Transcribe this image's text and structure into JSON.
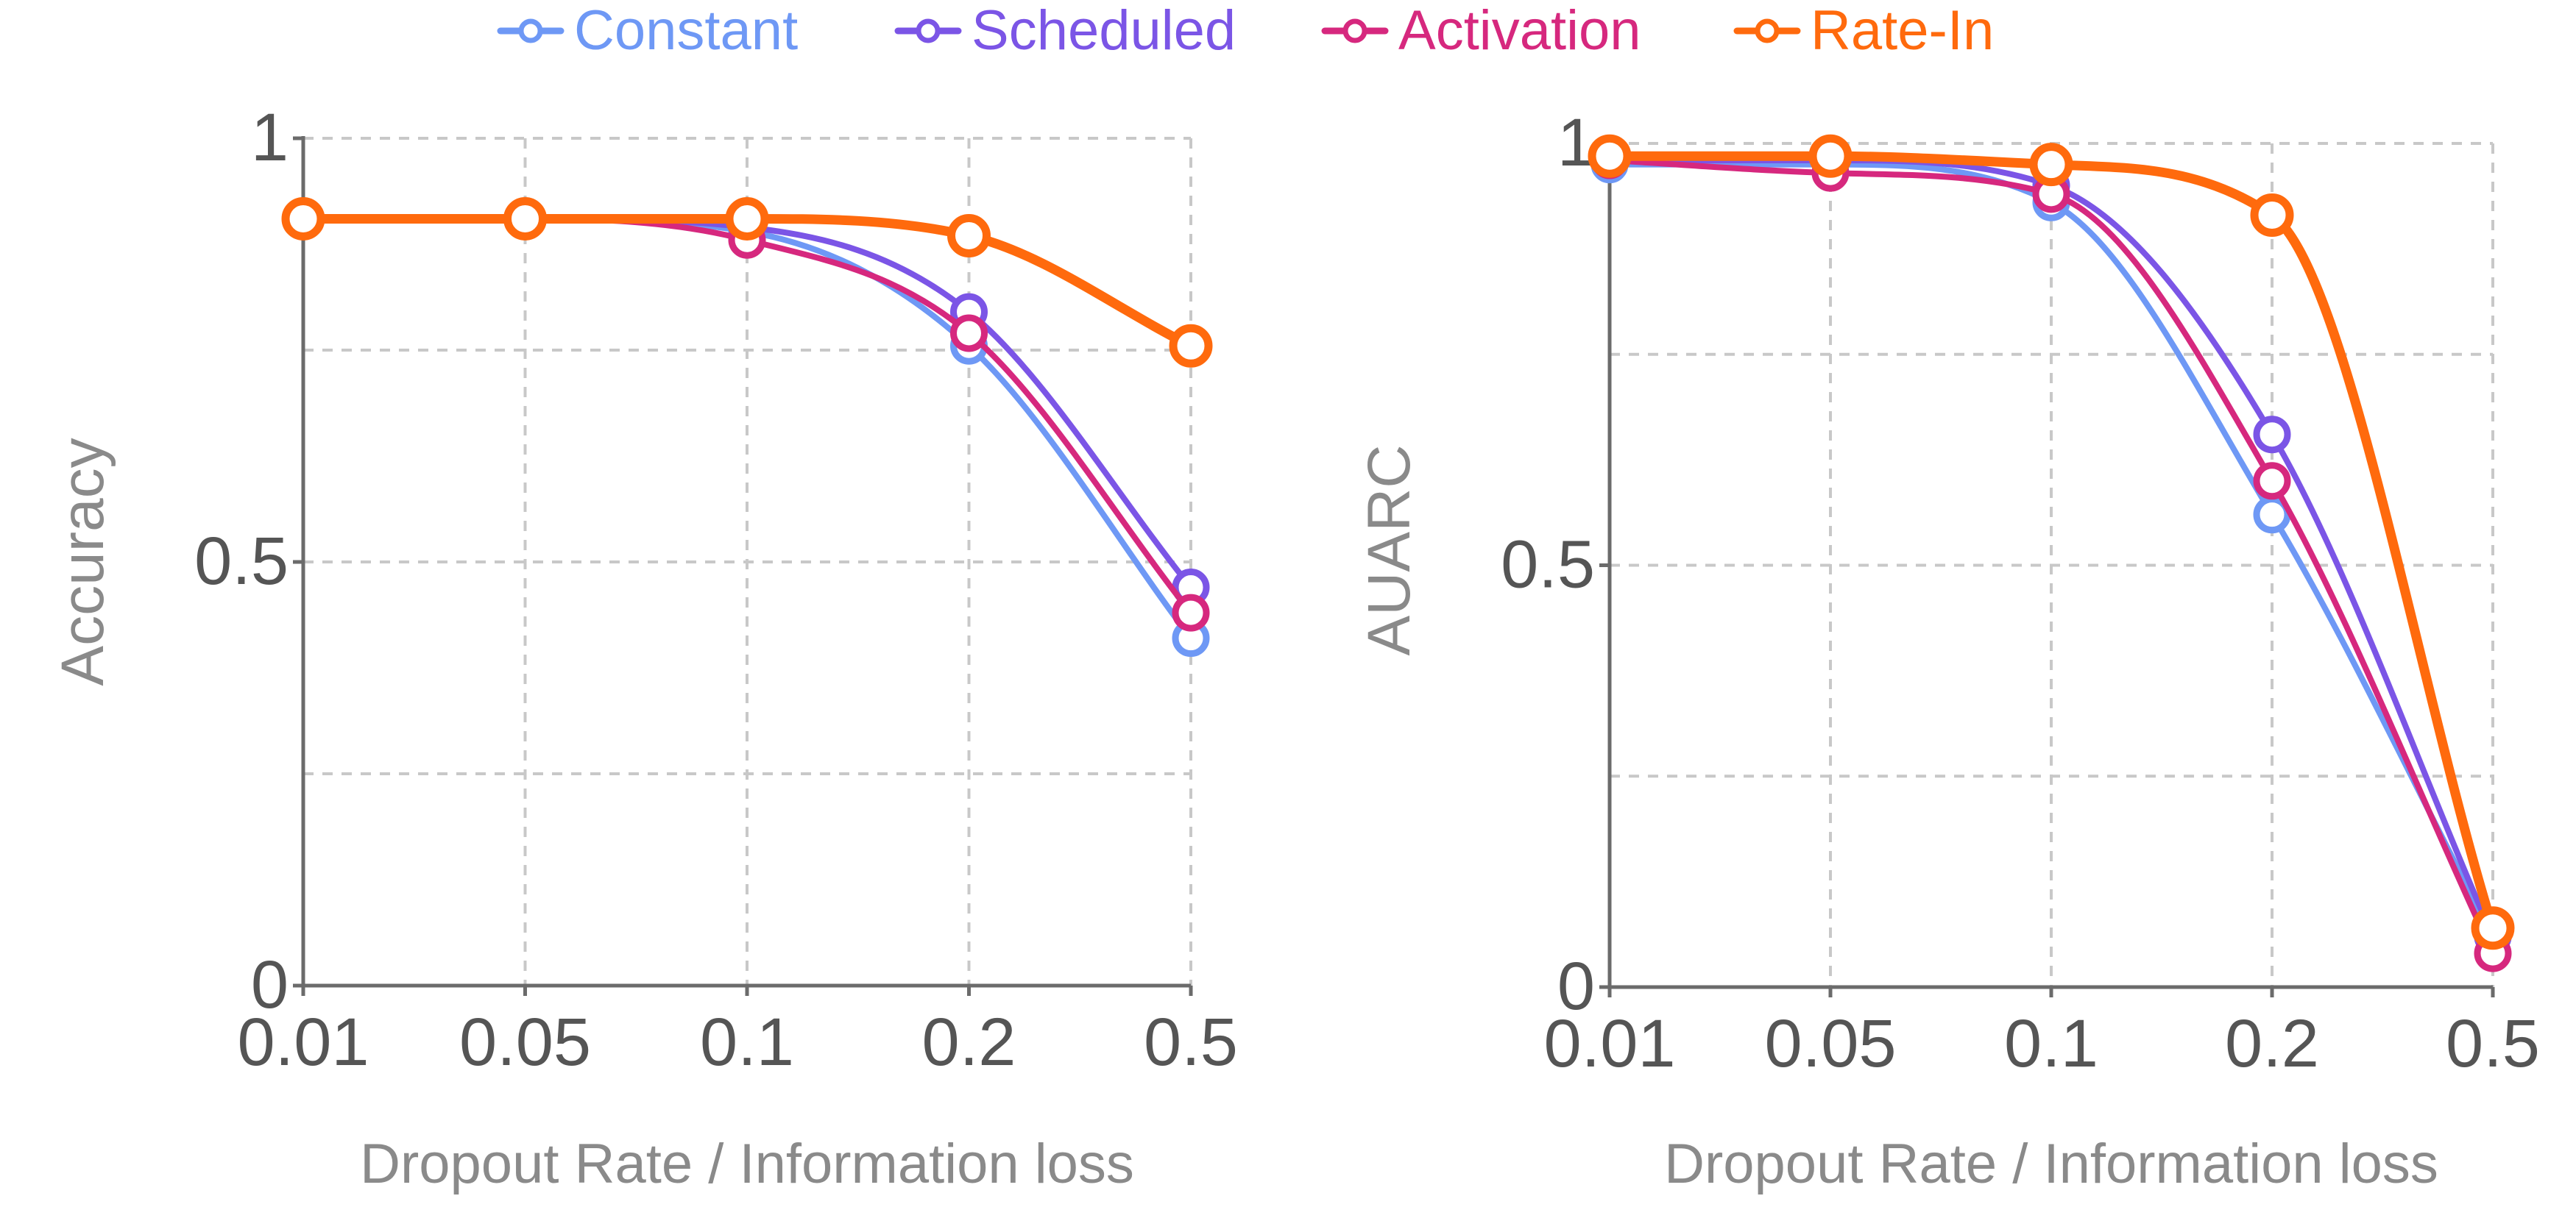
{
  "legend": [
    {
      "name": "Constant",
      "color": "#6E98F5"
    },
    {
      "name": "Scheduled",
      "color": "#7B55E6"
    },
    {
      "name": "Activation",
      "color": "#D6287E"
    },
    {
      "name": "Rate-In",
      "color": "#FF6A0D"
    }
  ],
  "chart_data": [
    {
      "type": "line",
      "title": "",
      "xlabel": "Dropout Rate / Information loss",
      "ylabel": "Accuracy",
      "categories": [
        "0.01",
        "0.05",
        "0.1",
        "0.2",
        "0.5"
      ],
      "ylim": [
        0,
        1
      ],
      "yticks": [
        0,
        0.5,
        1
      ],
      "ytick_labels": [
        "0",
        "0.5",
        "1"
      ],
      "grid": true,
      "series": [
        {
          "name": "Constant",
          "values": [
            0.905,
            0.905,
            0.89,
            0.755,
            0.41
          ]
        },
        {
          "name": "Scheduled",
          "values": [
            0.905,
            0.905,
            0.895,
            0.795,
            0.47
          ]
        },
        {
          "name": "Activation",
          "values": [
            0.905,
            0.905,
            0.88,
            0.77,
            0.44
          ]
        },
        {
          "name": "Rate-In",
          "values": [
            0.905,
            0.905,
            0.905,
            0.885,
            0.755
          ]
        }
      ]
    },
    {
      "type": "line",
      "title": "",
      "xlabel": "Dropout Rate / Information loss",
      "ylabel": "AUARC",
      "categories": [
        "0.01",
        "0.05",
        "0.1",
        "0.2",
        "0.5"
      ],
      "ylim": [
        0,
        1
      ],
      "yticks": [
        0,
        0.5,
        1
      ],
      "ytick_labels": [
        "0",
        "0.5",
        "1"
      ],
      "grid": true,
      "series": [
        {
          "name": "Constant",
          "values": [
            0.975,
            0.975,
            0.93,
            0.56,
            0.06
          ]
        },
        {
          "name": "Scheduled",
          "values": [
            0.98,
            0.98,
            0.95,
            0.655,
            0.06
          ]
        },
        {
          "name": "Activation",
          "values": [
            0.98,
            0.965,
            0.94,
            0.6,
            0.04
          ]
        },
        {
          "name": "Rate-In",
          "values": [
            0.985,
            0.985,
            0.975,
            0.915,
            0.07
          ]
        }
      ]
    }
  ]
}
